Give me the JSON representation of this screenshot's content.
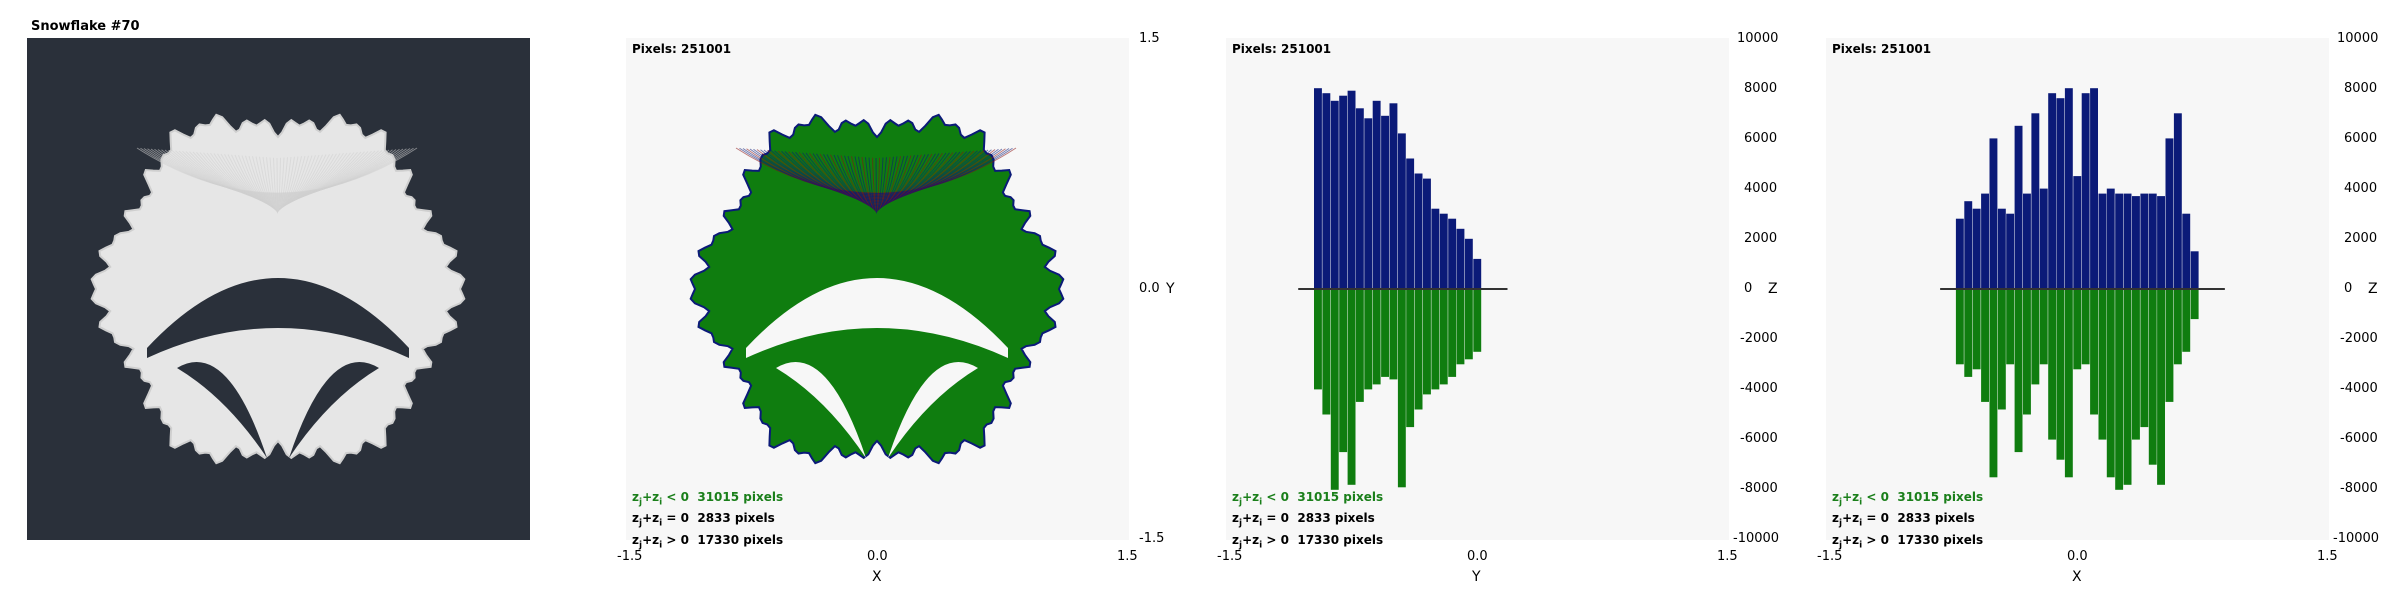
{
  "title": "Snowflake #70",
  "colors": {
    "dark_bg": "#2a303a",
    "plot_bg": "#f7f7f7",
    "fractal_fill": "#e6e6e6",
    "green": "#0f7d0f",
    "navy": "#0b1a78",
    "red": "#8b1010"
  },
  "panels": [
    {
      "pixels_label": "Pixels: 251001",
      "x_ticks": [
        "-1.5",
        "0.0",
        "1.5"
      ],
      "x_axis_name": "X",
      "right_ticks": [
        "1.5",
        "0.0",
        "-1.5"
      ],
      "right_axis_name": "Y",
      "legend": [
        {
          "lhs": "z",
          "sub1": "j",
          "mid": "+z",
          "sub2": "i",
          "rel": " < 0",
          "count": "31015 pixels"
        },
        {
          "lhs": "z",
          "sub1": "j",
          "mid": "+z",
          "sub2": "i",
          "rel": " = 0",
          "count": "2833 pixels"
        },
        {
          "lhs": "z",
          "sub1": "j",
          "mid": "+z",
          "sub2": "i",
          "rel": " > 0",
          "count": "17330 pixels"
        }
      ]
    },
    {
      "pixels_label": "Pixels: 251001",
      "x_ticks": [
        "-1.5",
        "0.0",
        "1.5"
      ],
      "x_axis_name": "Y",
      "right_ticks": [
        "10000",
        "8000",
        "6000",
        "4000",
        "2000",
        "0",
        "-2000",
        "-4000",
        "-6000",
        "-8000",
        "-10000"
      ],
      "right_axis_name": "Z",
      "legend": [
        {
          "lhs": "z",
          "sub1": "j",
          "mid": "+z",
          "sub2": "i",
          "rel": " < 0",
          "count": "31015 pixels"
        },
        {
          "lhs": "z",
          "sub1": "j",
          "mid": "+z",
          "sub2": "i",
          "rel": " = 0",
          "count": "2833 pixels"
        },
        {
          "lhs": "z",
          "sub1": "j",
          "mid": "+z",
          "sub2": "i",
          "rel": " > 0",
          "count": "17330 pixels"
        }
      ]
    },
    {
      "pixels_label": "Pixels: 251001",
      "x_ticks": [
        "-1.5",
        "0.0",
        "1.5"
      ],
      "x_axis_name": "X",
      "right_ticks": [
        "10000",
        "8000",
        "6000",
        "4000",
        "2000",
        "0",
        "-2000",
        "-4000",
        "-6000",
        "-8000",
        "-10000"
      ],
      "right_axis_name": "Z",
      "legend": [
        {
          "lhs": "z",
          "sub1": "j",
          "mid": "+z",
          "sub2": "i",
          "rel": " < 0",
          "count": "31015 pixels"
        },
        {
          "lhs": "z",
          "sub1": "j",
          "mid": "+z",
          "sub2": "i",
          "rel": " = 0",
          "count": "2833 pixels"
        },
        {
          "lhs": "z",
          "sub1": "j",
          "mid": "+z",
          "sub2": "i",
          "rel": " > 0",
          "count": "17330 pixels"
        }
      ]
    }
  ],
  "chart_data": [
    {
      "type": "scatter",
      "title": "Snowflake #70",
      "xlabel": "X",
      "ylabel": "Y",
      "xlim": [
        -1.5,
        1.5
      ],
      "ylim": [
        -1.5,
        1.5
      ],
      "series": [
        {
          "name": "zj+zi < 0",
          "count": 31015
        },
        {
          "name": "zj+zi = 0",
          "count": 2833
        },
        {
          "name": "zj+zi > 0",
          "count": 17330
        }
      ]
    },
    {
      "type": "bar",
      "xlabel": "Y",
      "ylabel": "Z",
      "xlim": [
        -1.5,
        1.5
      ],
      "ylim": [
        -10000,
        10000
      ],
      "x": [
        -0.95,
        -0.9,
        -0.85,
        -0.8,
        -0.75,
        -0.7,
        -0.65,
        -0.6,
        -0.55,
        -0.5,
        -0.45,
        -0.4,
        -0.35,
        -0.3,
        -0.25,
        -0.2,
        -0.15,
        -0.1,
        -0.05,
        0.0
      ],
      "series": [
        {
          "name": "positive",
          "values": [
            8000,
            7800,
            7500,
            7700,
            7900,
            7200,
            6800,
            7500,
            6900,
            7400,
            6200,
            5200,
            4600,
            4400,
            3200,
            3000,
            2800,
            2400,
            2000,
            1200
          ]
        },
        {
          "name": "negative",
          "values": [
            -4000,
            -5000,
            -8000,
            -6500,
            -7800,
            -4500,
            -4000,
            -3800,
            -3500,
            -3600,
            -7900,
            -5500,
            -4800,
            -4200,
            -4000,
            -3800,
            -3500,
            -3000,
            -2800,
            -2500
          ]
        }
      ]
    },
    {
      "type": "bar",
      "xlabel": "X",
      "ylabel": "Z",
      "xlim": [
        -1.5,
        1.5
      ],
      "ylim": [
        -10000,
        10000
      ],
      "x": [
        -0.7,
        -0.65,
        -0.6,
        -0.55,
        -0.5,
        -0.45,
        -0.4,
        -0.35,
        -0.3,
        -0.25,
        -0.2,
        -0.15,
        -0.1,
        -0.05,
        0.0,
        0.05,
        0.1,
        0.15,
        0.2,
        0.25,
        0.3,
        0.35,
        0.4,
        0.45,
        0.5,
        0.55,
        0.6,
        0.65,
        0.7
      ],
      "series": [
        {
          "name": "positive",
          "values": [
            2800,
            3500,
            3200,
            3800,
            6000,
            3200,
            3000,
            6500,
            3800,
            7000,
            4000,
            7800,
            7600,
            8000,
            4500,
            7800,
            8000,
            3800,
            4000,
            3800,
            3800,
            3700,
            3800,
            3800,
            3700,
            6000,
            7000,
            3000,
            1500
          ]
        },
        {
          "name": "negative",
          "values": [
            -3000,
            -3500,
            -3200,
            -4500,
            -7500,
            -4800,
            -3000,
            -6500,
            -5000,
            -3800,
            -3000,
            -6000,
            -6800,
            -7500,
            -3200,
            -3000,
            -5000,
            -6000,
            -7500,
            -8000,
            -7800,
            -6000,
            -5500,
            -7000,
            -7800,
            -4500,
            -3000,
            -2500,
            -1200
          ]
        }
      ]
    }
  ]
}
